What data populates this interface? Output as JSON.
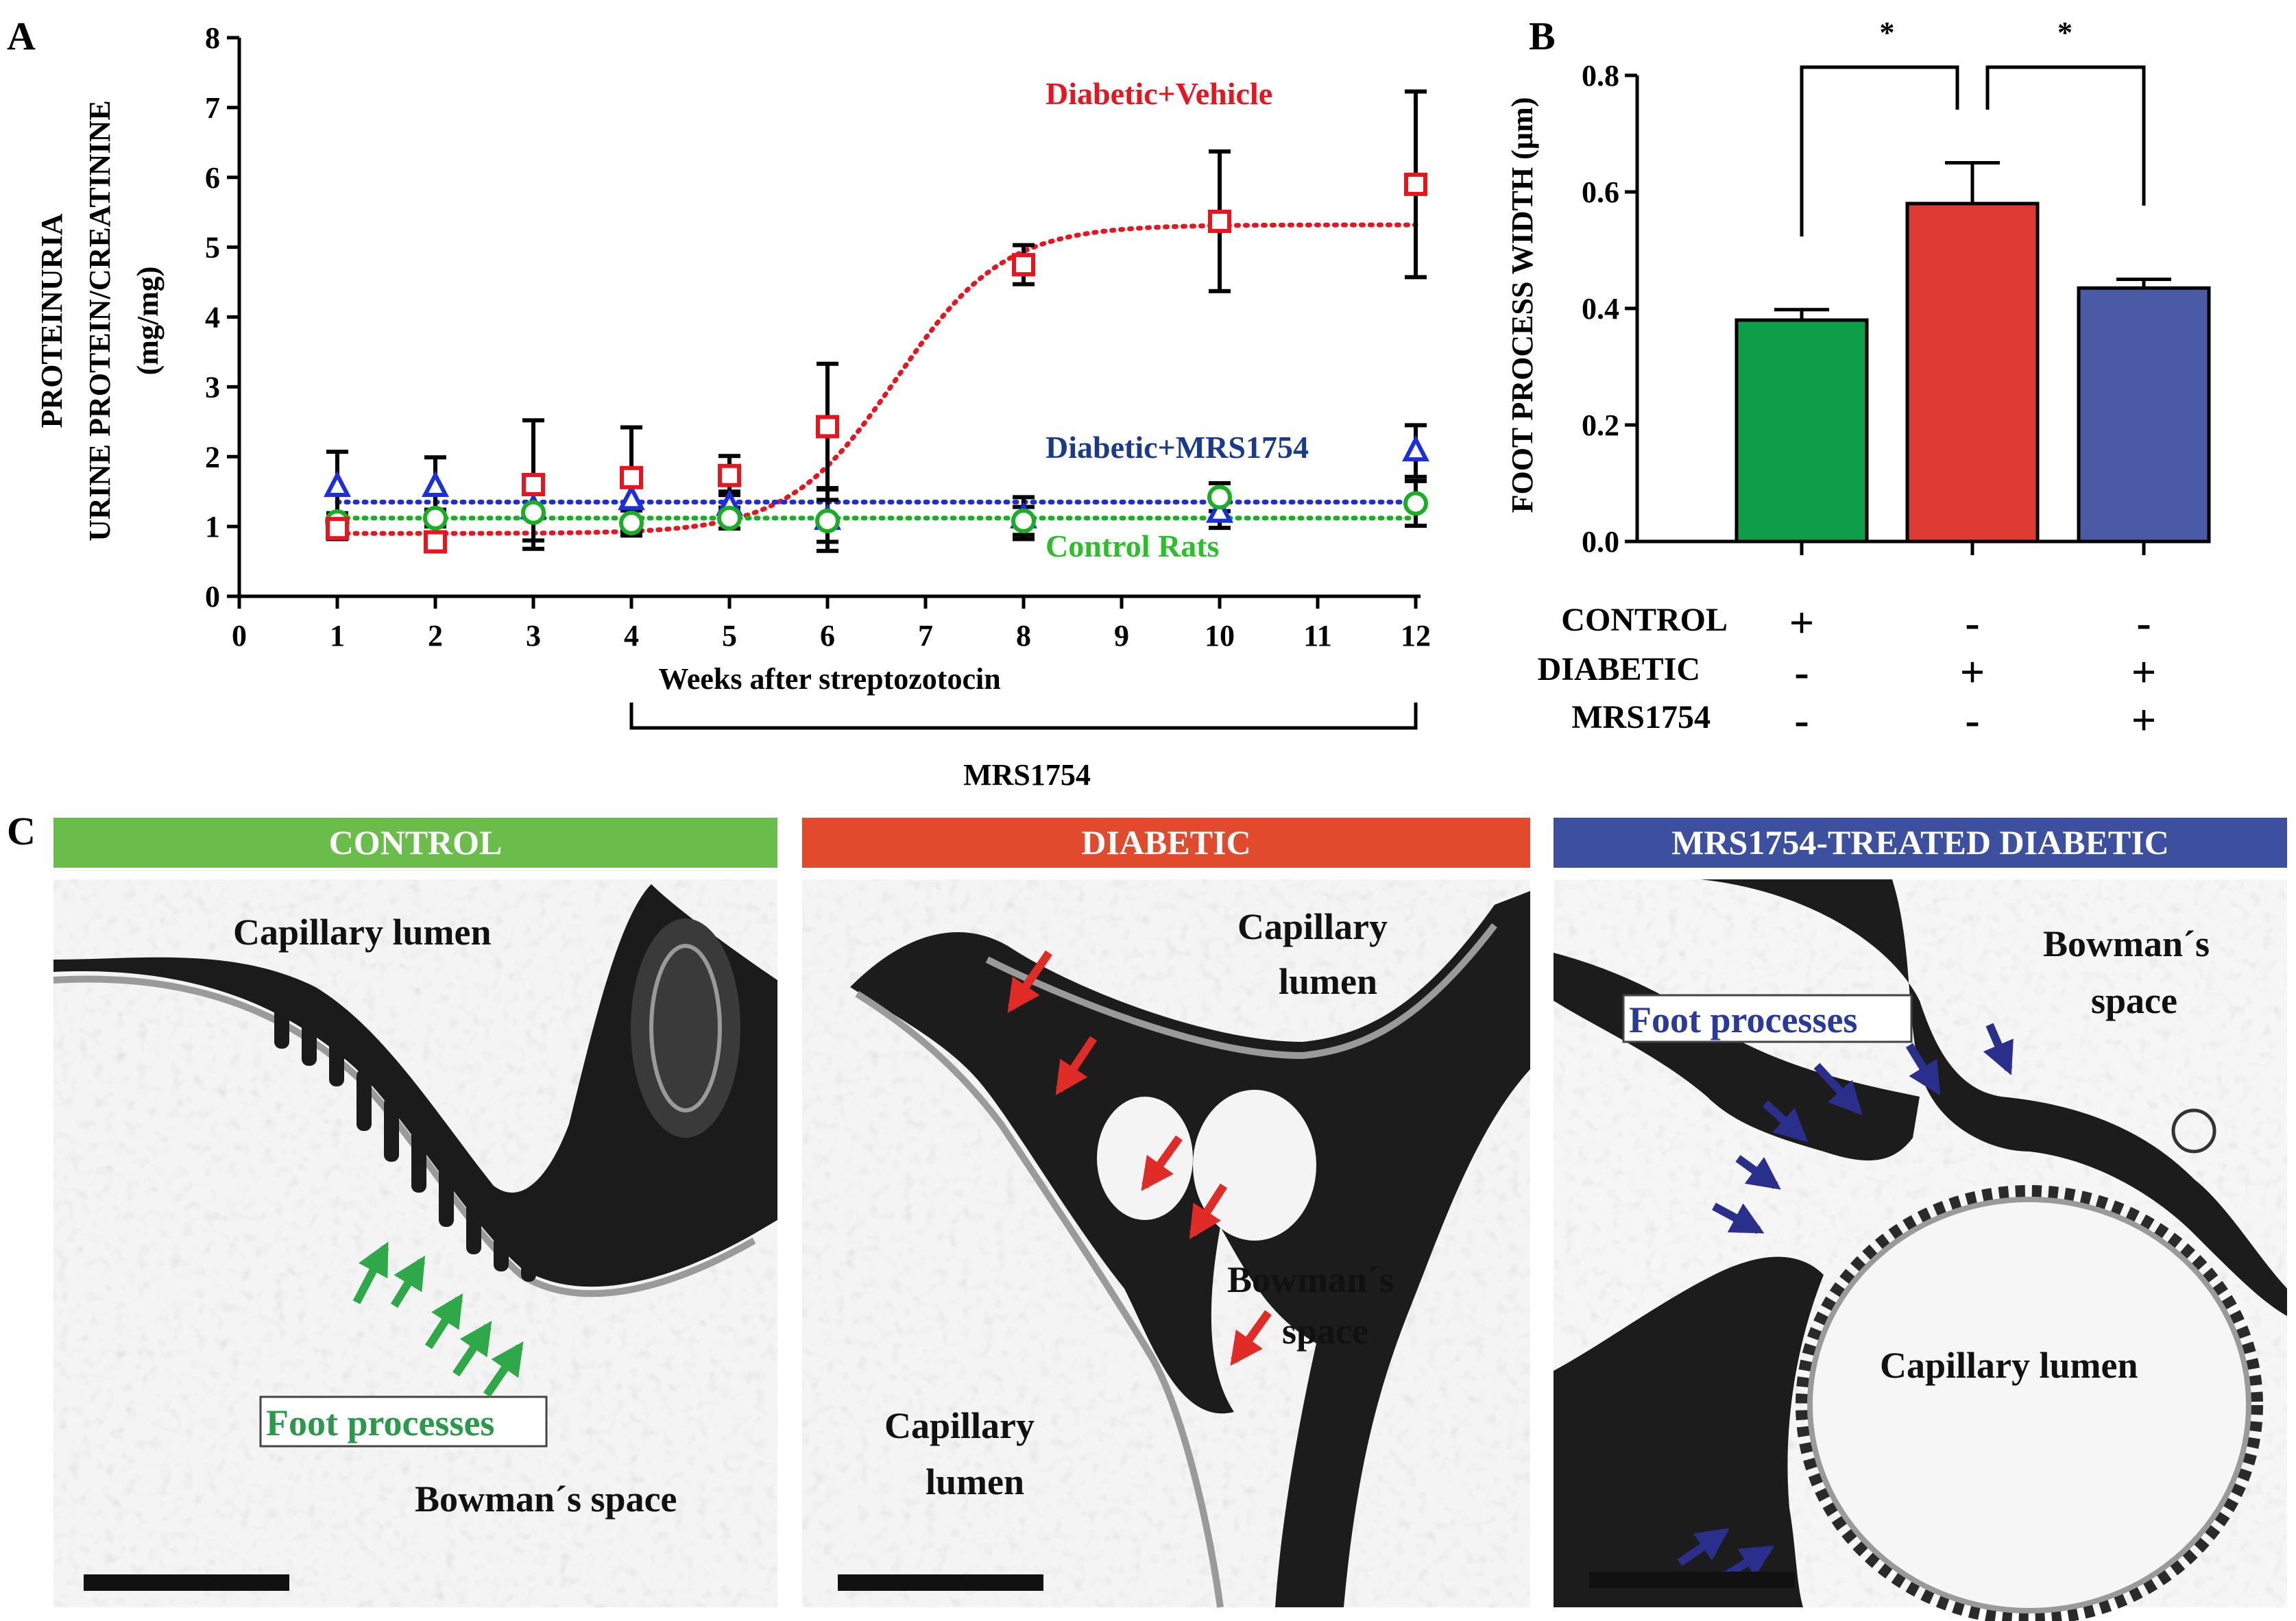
{
  "panels": {
    "a_letter": "A",
    "b_letter": "B",
    "c_letter": "C"
  },
  "chart_data": [
    {
      "type": "line",
      "title": "",
      "xlabel": "Weeks after streptozotocin",
      "ylabel_lines": [
        "PROTEINURIA",
        "URINE PROTEIN/CREATININE",
        "(mg/mg)"
      ],
      "xlim": [
        0,
        12
      ],
      "ylim": [
        0,
        8
      ],
      "x_ticks": [
        "0",
        "1",
        "2",
        "3",
        "4",
        "5",
        "6",
        "7",
        "8",
        "9",
        "10",
        "11",
        "12"
      ],
      "y_ticks": [
        "0",
        "1",
        "2",
        "3",
        "4",
        "5",
        "6",
        "7",
        "8"
      ],
      "treatment_bracket": {
        "label": "MRS1754",
        "from": 4,
        "to": 12
      },
      "series": [
        {
          "name": "Diabetic+Vehicle",
          "color": "#e8141e",
          "marker": "square",
          "x": [
            1,
            2,
            3,
            4,
            5,
            6,
            8,
            10,
            12
          ],
          "values": [
            0.97,
            0.78,
            1.6,
            1.7,
            1.73,
            2.43,
            4.75,
            5.37,
            5.9
          ],
          "errors": [
            0.15,
            0.08,
            0.92,
            0.72,
            0.28,
            0.9,
            0.28,
            1.0,
            1.33
          ],
          "fit": "sigmoid",
          "fit_params": {
            "bottom": 0.9,
            "top": 5.32,
            "x50": 6.7,
            "slope": 0.55
          }
        },
        {
          "name": "Diabetic+MRS1754",
          "color": "#1b2ee0",
          "label_color": "#1a3a8c",
          "marker": "triangle",
          "x": [
            1,
            2,
            3,
            4,
            5,
            6,
            8,
            10,
            12
          ],
          "values": [
            1.57,
            1.57,
            1.25,
            1.38,
            1.3,
            1.1,
            1.12,
            1.2,
            2.08
          ],
          "errors": [
            0.5,
            0.42,
            0.45,
            0.45,
            0.2,
            0.45,
            0.3,
            0.22,
            0.37
          ],
          "fit": "constant",
          "fit_value": 1.35
        },
        {
          "name": "Control Rats",
          "color": "#1aae25",
          "label_color": "#2bbf2b",
          "marker": "circle",
          "x": [
            1,
            2,
            3,
            4,
            5,
            6,
            8,
            10,
            12
          ],
          "values": [
            1.07,
            1.12,
            1.2,
            1.05,
            1.12,
            1.08,
            1.08,
            1.42,
            1.33
          ],
          "errors": [
            0.12,
            0.12,
            0.4,
            0.18,
            0.15,
            0.3,
            0.2,
            0.2,
            0.32
          ],
          "fit": "constant",
          "fit_value": 1.12
        }
      ]
    },
    {
      "type": "bar",
      "title": "",
      "ylabel": "FOOT PROCESS WIDTH (µm)",
      "ylim": [
        0,
        0.8
      ],
      "y_ticks": [
        "0.0",
        "0.2",
        "0.4",
        "0.6",
        "0.8"
      ],
      "categories": [
        "Control",
        "Diabetic",
        "MRS1754-treated diabetic"
      ],
      "values": [
        0.38,
        0.58,
        0.435
      ],
      "errors": [
        0.018,
        0.07,
        0.015
      ],
      "colors": [
        "#0e9e4a",
        "#e03a34",
        "#4a5aa5"
      ],
      "significance": [
        {
          "from": 0,
          "to": 1,
          "label": "*"
        },
        {
          "from": 1,
          "to": 2,
          "label": "*"
        }
      ],
      "condition_table": {
        "rows": [
          "CONTROL",
          "DIABETIC",
          "MRS1754"
        ],
        "signs": [
          [
            "+",
            "-",
            "-"
          ],
          [
            "-",
            "+",
            "+"
          ],
          [
            "-",
            "-",
            "+"
          ]
        ]
      }
    }
  ],
  "micrographs": [
    {
      "header": "CONTROL",
      "header_color": "#6bbd4b",
      "arrow_color": "#2fa84a",
      "labels": [
        "Capillary lumen",
        "Bowman´s space"
      ],
      "boxed_label": "Foot processes",
      "boxed_color": "#2a9a4a"
    },
    {
      "header": "DIABETIC",
      "header_color": "#e14a2c",
      "arrow_color": "#e02b26",
      "labels": [
        "Capillary",
        "lumen",
        "Bowman´s",
        "space",
        "Capillary",
        "lumen"
      ]
    },
    {
      "header": "MRS1754-TREATED DIABETIC",
      "header_color": "#3d4f9f",
      "arrow_color": "#2a2f8c",
      "labels": [
        "Bowman´s",
        "space",
        "Capillary lumen"
      ],
      "boxed_label": "Foot processes",
      "boxed_color": "#2a3a9c"
    }
  ]
}
